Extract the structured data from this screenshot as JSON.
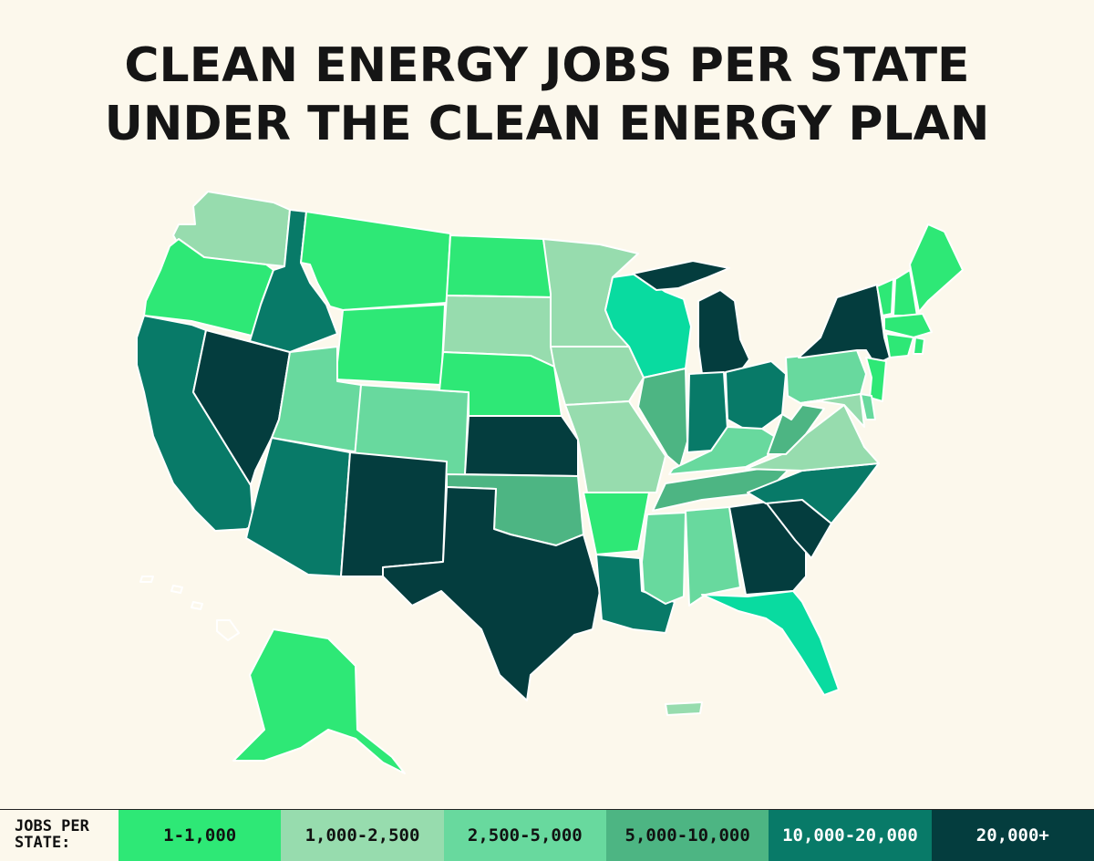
{
  "title_line1": "CLEAN ENERGY JOBS PER STATE",
  "title_line2": "UNDER THE CLEAN ENERGY PLAN",
  "legend": {
    "label": "JOBS PER\nSTATE:",
    "items": [
      {
        "label": "1-1,000",
        "color": "#2ee876",
        "text_color": "#111111"
      },
      {
        "label": "1,000-2,500",
        "color": "#97dcae",
        "text_color": "#111111"
      },
      {
        "label": "2,500-5,000",
        "color": "#68d99e",
        "text_color": "#111111"
      },
      {
        "label": "5,000-10,000",
        "color": "#4db583",
        "text_color": "#111111"
      },
      {
        "label": "10,000-20,000",
        "color": "#087a68",
        "text_color": "#ffffff"
      },
      {
        "label": "20,000+",
        "color": "#043d3e",
        "text_color": "#ffffff"
      }
    ]
  },
  "bins": {
    "Washington": 1,
    "Oregon": 0,
    "California": 4,
    "Nevada": 5,
    "Idaho": 4,
    "Montana": 0,
    "Wyoming": 0,
    "Utah": 2,
    "Arizona": 4,
    "Colorado": 2,
    "New Mexico": 5,
    "North Dakota": 0,
    "South Dakota": 1,
    "Nebraska": 0,
    "Kansas": 5,
    "Oklahoma": 3,
    "Texas": 5,
    "Minnesota": 1,
    "Iowa": 1,
    "Missouri": 1,
    "Arkansas": 0,
    "Louisiana": 4,
    "Wisconsin": "special-wi",
    "Illinois": 3,
    "Michigan": 5,
    "Indiana": 4,
    "Ohio": 4,
    "Kentucky": 2,
    "Tennessee": 3,
    "Mississippi": 2,
    "Alabama": 2,
    "Georgia": 5,
    "Florida": "special-fl",
    "South Carolina": 5,
    "North Carolina": 4,
    "Virginia": 1,
    "West Virginia": 3,
    "Pennsylvania": 2,
    "New York": 5,
    "Vermont": 0,
    "New Hampshire": 0,
    "Maine": 0,
    "Massachusetts": 0,
    "Connecticut": 0,
    "Rhode Island": 0,
    "New Jersey": 0,
    "Delaware": 2,
    "Maryland": 1,
    "Alaska": 0,
    "Hawaii": "special-hi",
    "Puerto Rico": 1
  },
  "special_colors": {
    "special-wi": "#09dba0",
    "special-fl": "#09dba0",
    "special-hi": "#fcf8ec"
  }
}
